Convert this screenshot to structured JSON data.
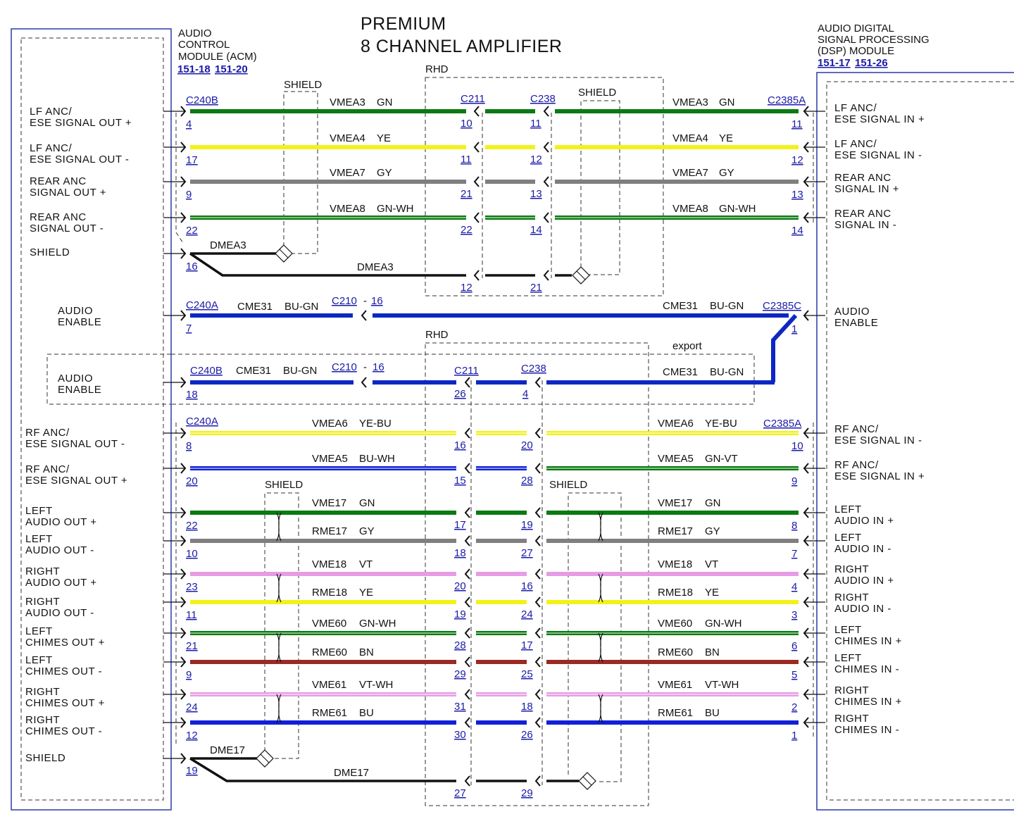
{
  "title": {
    "line1": "PREMIUM",
    "line2": "8 CHANNEL AMPLIFIER"
  },
  "acm": {
    "line1": "AUDIO",
    "line2": "CONTROL",
    "line3": "MODULE (ACM)",
    "ref1": "151-18",
    "ref2": "151-20"
  },
  "dsp": {
    "line1": "AUDIO DIGITAL",
    "line2": "SIGNAL PROCESSING",
    "line3": "(DSP) MODULE",
    "ref1": "151-17",
    "ref2": "151-26"
  },
  "labels": {
    "shield": "SHIELD",
    "rhd": "RHD",
    "export": "export"
  },
  "colors": {
    "GN": "#0a7a12",
    "YE": "#f2f21a",
    "GY": "#7f7f7f",
    "BU": "#1020d8",
    "VT": "#e79be6",
    "BN": "#9a2a24",
    "BK": "#111111",
    "BUGN": "#0d28c2"
  },
  "left_pins": [
    {
      "l1": "LF ANC/",
      "l2": "ESE SIGNAL OUT +"
    },
    {
      "l1": "LF ANC/",
      "l2": "ESE SIGNAL OUT -"
    },
    {
      "l1": "REAR ANC",
      "l2": "SIGNAL OUT +"
    },
    {
      "l1": "REAR ANC",
      "l2": "SIGNAL OUT -"
    },
    {
      "l1": "SHIELD",
      "l2": ""
    },
    {
      "l1": "AUDIO",
      "l2": "ENABLE"
    },
    {
      "l1": "AUDIO",
      "l2": "ENABLE"
    },
    {
      "l1": "RF ANC/",
      "l2": "ESE SIGNAL OUT -"
    },
    {
      "l1": "RF ANC/",
      "l2": "ESE SIGNAL OUT +"
    },
    {
      "l1": "LEFT",
      "l2": "AUDIO OUT +"
    },
    {
      "l1": "LEFT",
      "l2": "AUDIO OUT -"
    },
    {
      "l1": "RIGHT",
      "l2": "AUDIO OUT +"
    },
    {
      "l1": "RIGHT",
      "l2": "AUDIO OUT -"
    },
    {
      "l1": "LEFT",
      "l2": "CHIMES OUT +"
    },
    {
      "l1": "LEFT",
      "l2": "CHIMES OUT -"
    },
    {
      "l1": "RIGHT",
      "l2": "CHIMES OUT +"
    },
    {
      "l1": "RIGHT",
      "l2": "CHIMES OUT -"
    },
    {
      "l1": "SHIELD",
      "l2": ""
    }
  ],
  "right_pins": [
    {
      "l1": "LF ANC/",
      "l2": "ESE SIGNAL IN +"
    },
    {
      "l1": "LF ANC/",
      "l2": "ESE SIGNAL IN -"
    },
    {
      "l1": "REAR ANC",
      "l2": "SIGNAL IN +"
    },
    {
      "l1": "REAR ANC",
      "l2": "SIGNAL IN -"
    },
    {
      "l1": "AUDIO",
      "l2": "ENABLE"
    },
    {
      "l1": "RF ANC/",
      "l2": "ESE SIGNAL IN -"
    },
    {
      "l1": "RF ANC/",
      "l2": "ESE SIGNAL IN +"
    },
    {
      "l1": "LEFT",
      "l2": "AUDIO IN +"
    },
    {
      "l1": "LEFT",
      "l2": "AUDIO IN -"
    },
    {
      "l1": "RIGHT",
      "l2": "AUDIO IN +"
    },
    {
      "l1": "RIGHT",
      "l2": "AUDIO IN -"
    },
    {
      "l1": "LEFT",
      "l2": "CHIMES IN +"
    },
    {
      "l1": "LEFT",
      "l2": "CHIMES IN -"
    },
    {
      "l1": "RIGHT",
      "l2": "CHIMES IN +"
    },
    {
      "l1": "RIGHT",
      "l2": "CHIMES IN -"
    }
  ],
  "connectors": {
    "c240b_top": "C240B",
    "c211_top": "C211",
    "c238_top": "C238",
    "c2385a_top": "C2385A",
    "c240a_mid": "C240A",
    "c210_mid": "C210",
    "c210_mid_pin": "16",
    "c2385c": "C2385C",
    "c240b_mid": "C240B",
    "c210_mid2": "C210",
    "c210_mid2_pin": "16",
    "c211_mid": "C211",
    "c238_mid": "C238",
    "c240a_low": "C240A",
    "c2385a_low": "C2385A",
    "dash": "-"
  },
  "circuits_top": [
    {
      "name": "VMEA3",
      "color": "GN",
      "lp": "4",
      "p1": "10",
      "p2": "11",
      "rp": "11"
    },
    {
      "name": "VMEA4",
      "color": "YE",
      "lp": "17",
      "p1": "11",
      "p2": "12",
      "rp": "12"
    },
    {
      "name": "VMEA7",
      "color": "GY",
      "lp": "9",
      "p1": "21",
      "p2": "13",
      "rp": "13"
    },
    {
      "name": "VMEA8",
      "color": "GN-WH",
      "lp": "22",
      "p1": "22",
      "p2": "14",
      "rp": "14"
    }
  ],
  "drain_top": {
    "name": "DMEA3",
    "lp": "16",
    "p1": "12",
    "p2": "21"
  },
  "enable1": {
    "name": "CME31",
    "color": "BU-GN",
    "lp": "7",
    "rp": "1"
  },
  "enable2": {
    "name": "CME31",
    "color": "BU-GN",
    "lp": "18",
    "p1": "26",
    "p2": "4"
  },
  "circuits_low": [
    {
      "lname": "VMEA6",
      "lcolor": "YE-BU",
      "rname": "VMEA6",
      "rcolor": "YE-BU",
      "lp": "8",
      "p1": "16",
      "p2": "20",
      "rp": "10"
    },
    {
      "lname": "VMEA5",
      "lcolor": "BU-WH",
      "rname": "VMEA5",
      "rcolor": "GN-VT",
      "lp": "20",
      "p1": "15",
      "p2": "28",
      "rp": "9"
    },
    {
      "lname": "VME17",
      "lcolor": "GN",
      "rname": "VME17",
      "rcolor": "GN",
      "lp": "22",
      "p1": "17",
      "p2": "19",
      "rp": "8"
    },
    {
      "lname": "RME17",
      "lcolor": "GY",
      "rname": "RME17",
      "rcolor": "GY",
      "lp": "10",
      "p1": "18",
      "p2": "27",
      "rp": "7"
    },
    {
      "lname": "VME18",
      "lcolor": "VT",
      "rname": "VME18",
      "rcolor": "VT",
      "lp": "23",
      "p1": "20",
      "p2": "16",
      "rp": "4"
    },
    {
      "lname": "RME18",
      "lcolor": "YE",
      "rname": "RME18",
      "rcolor": "YE",
      "lp": "11",
      "p1": "19",
      "p2": "24",
      "rp": "3"
    },
    {
      "lname": "VME60",
      "lcolor": "GN-WH",
      "rname": "VME60",
      "rcolor": "GN-WH",
      "lp": "21",
      "p1": "28",
      "p2": "17",
      "rp": "6"
    },
    {
      "lname": "RME60",
      "lcolor": "BN",
      "rname": "RME60",
      "rcolor": "BN",
      "lp": "9",
      "p1": "29",
      "p2": "25",
      "rp": "5"
    },
    {
      "lname": "VME61",
      "lcolor": "VT-WH",
      "rname": "VME61",
      "rcolor": "VT-WH",
      "lp": "24",
      "p1": "31",
      "p2": "18",
      "rp": "2"
    },
    {
      "lname": "RME61",
      "lcolor": "BU",
      "rname": "RME61",
      "rcolor": "BU",
      "lp": "12",
      "p1": "30",
      "p2": "26",
      "rp": "1"
    }
  ],
  "drain_low": {
    "name": "DME17",
    "lp": "19",
    "p1": "27",
    "p2": "29"
  }
}
